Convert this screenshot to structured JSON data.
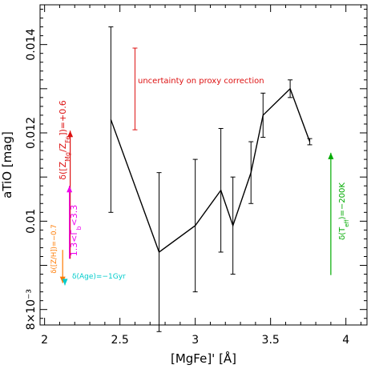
{
  "chart_data": {
    "type": "line",
    "title": "",
    "xlabel": "[MgFe]' [Å]",
    "ylabel": "aTiO [mag]",
    "xlim": [
      1.97,
      4.14
    ],
    "ylim": [
      0.00765,
      0.0149
    ],
    "grid": false,
    "x_ticks": [
      {
        "value": 2.0,
        "label": "2"
      },
      {
        "value": 2.5,
        "label": "2.5"
      },
      {
        "value": 3.0,
        "label": "3"
      },
      {
        "value": 3.5,
        "label": "3.5"
      },
      {
        "value": 4.0,
        "label": "4"
      }
    ],
    "y_ticks": [
      {
        "value": 0.008,
        "label": "8×10⁻³"
      },
      {
        "value": 0.01,
        "label": "0.01"
      },
      {
        "value": 0.012,
        "label": "0.012"
      },
      {
        "value": 0.014,
        "label": "0.014"
      }
    ],
    "series": [
      {
        "color": "#000000",
        "points": [
          {
            "x": 2.44,
            "y": 0.0123,
            "err": 0.0021
          },
          {
            "x": 2.76,
            "y": 0.0093,
            "err": 0.0018
          },
          {
            "x": 3.0,
            "y": 0.0099,
            "err": 0.0015
          },
          {
            "x": 3.17,
            "y": 0.0107,
            "err": 0.0014
          },
          {
            "x": 3.25,
            "y": 0.0099,
            "err": 0.0011
          },
          {
            "x": 3.37,
            "y": 0.0111,
            "err": 0.0007
          },
          {
            "x": 3.45,
            "y": 0.0124,
            "err": 0.0005
          },
          {
            "x": 3.63,
            "y": 0.013,
            "err": 0.0002
          },
          {
            "x": 3.76,
            "y": 0.0118,
            "err": 7e-05
          }
        ]
      }
    ],
    "annotations": {
      "proxy_error_bar": {
        "x": 2.6,
        "y_low": 0.01207,
        "y_high": 0.01392,
        "color": "#dd1111"
      },
      "proxy_label": {
        "text": "uncertainty on proxy correction",
        "color": "#dd1111"
      },
      "arrows": [
        {
          "name": "mg-fe",
          "x": 2.17,
          "y_from": 0.00915,
          "y_to": 0.01205,
          "color": "#dd1111",
          "label": "δ([Z_Mg/Z_Fe])=+0.6"
        },
        {
          "name": "imf",
          "x": 2.165,
          "y_from": 0.00915,
          "y_to": 0.0108,
          "color": "#ee00ee",
          "label": "1.3<Γ_b<3.3"
        },
        {
          "name": "z-h",
          "x": 2.12,
          "y_from": 0.00935,
          "y_to": 0.0086,
          "color": "#ff7a00",
          "label": "δ([Z/H])=−0.7"
        },
        {
          "name": "age",
          "x": 2.135,
          "y_from": 0.0086,
          "y_to": 0.00855,
          "color": "#00cccc",
          "label": "δ(Age)=−1Gyr"
        },
        {
          "name": "teff",
          "x": 3.9,
          "y_from": 0.00878,
          "y_to": 0.01155,
          "color": "#00aa00",
          "label": "δ(T_eff)=−200K"
        }
      ]
    }
  }
}
